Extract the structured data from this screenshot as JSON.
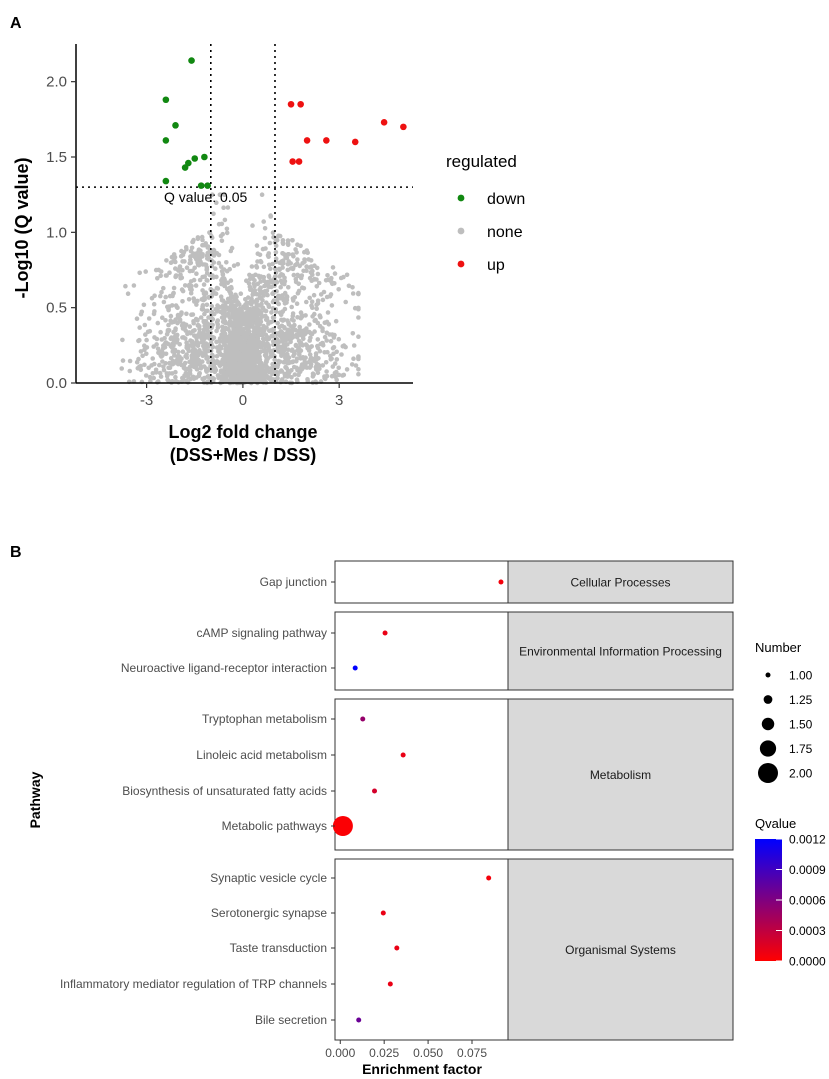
{
  "panel_labels": {
    "a": "A",
    "b": "B"
  },
  "chart_data": [
    {
      "type": "scatter",
      "panel": "A",
      "xlabel_line1": "Log2 fold change",
      "xlabel_line2": "(DSS+Mes / DSS)",
      "ylabel": "-Log10 (Q value)",
      "xlim": [
        -5.2,
        5.3
      ],
      "ylim": [
        0,
        2.25
      ],
      "x_ticks": [
        -3,
        0,
        3
      ],
      "x_tick_labels": [
        "-3",
        "0",
        "3"
      ],
      "y_ticks": [
        0.0,
        0.5,
        1.0,
        1.5,
        2.0
      ],
      "y_tick_labels": [
        "0.0",
        "0.5",
        "1.0",
        "1.5",
        "2.0"
      ],
      "vlines": [
        -1,
        1
      ],
      "hline": 1.3,
      "hline_label": "Q value: 0.05",
      "legend_title": "regulated",
      "colors": {
        "down": "#118811",
        "none": "#bebebe",
        "up": "#ee1111"
      },
      "series": [
        {
          "name": "down",
          "label": "down",
          "points": [
            [
              -1.6,
              2.14
            ],
            [
              -2.4,
              1.88
            ],
            [
              -2.1,
              1.71
            ],
            [
              -2.4,
              1.61
            ],
            [
              -1.2,
              1.5
            ],
            [
              -1.5,
              1.49
            ],
            [
              -1.7,
              1.46
            ],
            [
              -1.8,
              1.43
            ],
            [
              -2.4,
              1.34
            ],
            [
              -1.3,
              1.31
            ],
            [
              -1.1,
              1.31
            ]
          ]
        },
        {
          "name": "none",
          "label": "none",
          "points": []
        },
        {
          "name": "up",
          "label": "up",
          "points": [
            [
              1.5,
              1.85
            ],
            [
              1.8,
              1.85
            ],
            [
              4.4,
              1.73
            ],
            [
              5.0,
              1.7
            ],
            [
              2.6,
              1.61
            ],
            [
              2.0,
              1.61
            ],
            [
              3.5,
              1.6
            ],
            [
              1.55,
              1.47
            ],
            [
              1.75,
              1.47
            ]
          ]
        }
      ]
    },
    {
      "type": "scatter",
      "panel": "B",
      "xlabel": "Enrichment factor",
      "ylabel": "Pathway",
      "xlim": [
        -0.003,
        0.0955
      ],
      "x_ticks": [
        0,
        0.025,
        0.05,
        0.075
      ],
      "x_tick_labels": [
        "0.000",
        "0.025",
        "0.050",
        "0.075"
      ],
      "groups": [
        {
          "name": "Cellular Processes",
          "pathways": [
            {
              "name": "Gap junction",
              "enrichment": 0.0915,
              "qvalue": 5e-05,
              "number": 1
            }
          ]
        },
        {
          "name": "Environmental Information Processing",
          "pathways": [
            {
              "name": "cAMP signaling pathway",
              "enrichment": 0.0255,
              "qvalue": 0.0001,
              "number": 1
            },
            {
              "name": "Neuroactive ligand-receptor interaction",
              "enrichment": 0.0085,
              "qvalue": 0.0012,
              "number": 1
            }
          ]
        },
        {
          "name": "Metabolism",
          "pathways": [
            {
              "name": "Tryptophan metabolism",
              "enrichment": 0.0128,
              "qvalue": 0.0005,
              "number": 1
            },
            {
              "name": "Linoleic acid metabolism",
              "enrichment": 0.0358,
              "qvalue": 0.0001,
              "number": 1
            },
            {
              "name": "Biosynthesis of unsaturated fatty acids",
              "enrichment": 0.0195,
              "qvalue": 0.0002,
              "number": 1
            },
            {
              "name": "Metabolic pathways",
              "enrichment": 0.0015,
              "qvalue": 2e-05,
              "number": 2
            }
          ]
        },
        {
          "name": "Organismal Systems",
          "pathways": [
            {
              "name": "Synaptic vesicle cycle",
              "enrichment": 0.0845,
              "qvalue": 5e-05,
              "number": 1
            },
            {
              "name": "Serotonergic synapse",
              "enrichment": 0.0245,
              "qvalue": 0.0001,
              "number": 1
            },
            {
              "name": "Taste transduction",
              "enrichment": 0.0322,
              "qvalue": 0.0001,
              "number": 1
            },
            {
              "name": "Inflammatory mediator regulation of TRP channels",
              "enrichment": 0.0285,
              "qvalue": 0.0001,
              "number": 1
            },
            {
              "name": "Bile secretion",
              "enrichment": 0.0105,
              "qvalue": 0.0007,
              "number": 1
            }
          ]
        }
      ],
      "size_legend": {
        "title": "Number",
        "values": [
          1.0,
          1.25,
          1.5,
          1.75,
          2.0
        ],
        "labels": [
          "1.00",
          "1.25",
          "1.50",
          "1.75",
          "2.00"
        ]
      },
      "color_legend": {
        "title": "Qvalue",
        "min": 0.0,
        "max": 0.0012,
        "ticks": [
          0.0012,
          0.0009,
          0.0006,
          0.0003,
          0.0
        ],
        "labels": [
          "0.0012",
          "0.0009",
          "0.0006",
          "0.0003",
          "0.0000"
        ],
        "low_color": "#ff0000",
        "high_color": "#0000ff"
      },
      "strip_fill": "#d9d9d9"
    }
  ]
}
